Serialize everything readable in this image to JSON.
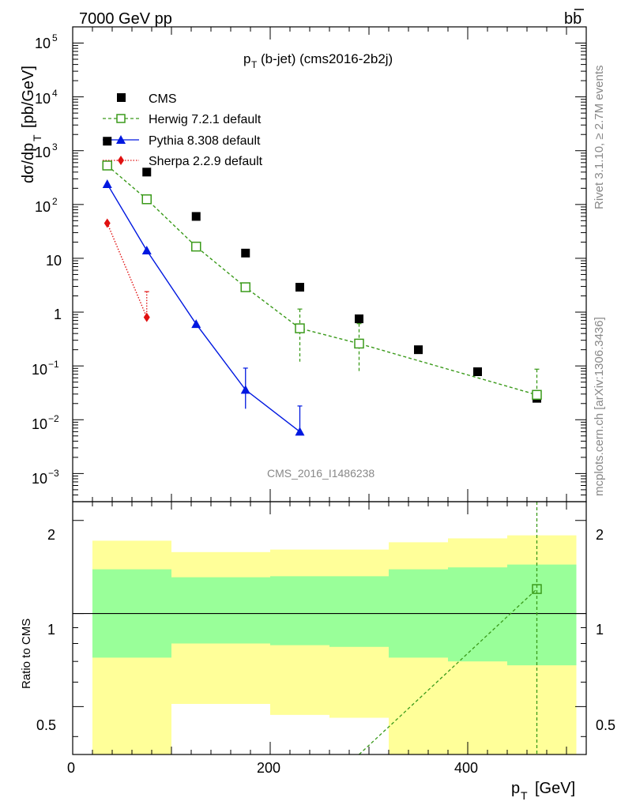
{
  "header": {
    "energy_label": "7000 GeV pp",
    "process_label": "bb",
    "plot_title_main": "p",
    "plot_title_sub": "T",
    "plot_title_rest": "(b-jet) (cms2016-2b2j)",
    "analysis_id": "CMS_2016_I1486238",
    "side_rivet": "Rivet 3.1.10, ≥ 2.7M events",
    "side_mcplots": "mcplots.cern.ch [arXiv:1306.3436]"
  },
  "axes": {
    "top_ylabel": "dσ/dp",
    "top_ylabel_sub": "T",
    "top_ylabel_unit": "[pb/GeV]",
    "ratio_ylabel": "Ratio to CMS",
    "xlabel_main": "p",
    "xlabel_sub": "T",
    "xlabel_unit": "[GeV]",
    "x_ticks": [
      "0",
      "200",
      "400"
    ],
    "ratio_ticks": [
      "0.5",
      "1",
      "2"
    ],
    "top_ticks": {
      "base10": "10",
      "e5": "5",
      "e4": "4",
      "e3": "3",
      "e2": "2",
      "ten": "10",
      "one": "1",
      "em1": "−1",
      "em2": "−2",
      "em3": "−3"
    }
  },
  "legend": {
    "cms": "CMS",
    "herwig": "Herwig 7.2.1 default",
    "pythia": "Pythia 8.308 default",
    "sherpa": "Sherpa 2.2.9 default"
  },
  "colors": {
    "cms": "#000000",
    "herwig": "#3a9a1a",
    "pythia": "#0018e0",
    "sherpa": "#e01010",
    "band_outer": "#ffff99",
    "band_inner": "#99ff99"
  },
  "chart_data": {
    "type": "scatter",
    "x_axis": {
      "label": "pT [GeV]",
      "range": [
        0,
        520
      ],
      "scale": "linear"
    },
    "y_axis_top": {
      "label": "dσ/dpT [pb/GeV]",
      "range": [
        0.0003,
        200000
      ],
      "scale": "log"
    },
    "y_axis_ratio": {
      "label": "Ratio to CMS",
      "range": [
        0.35,
        2.3
      ],
      "scale": "log"
    },
    "legend_position": "top-left",
    "series": [
      {
        "name": "CMS",
        "marker": "square",
        "x": [
          35,
          75,
          125,
          175,
          230,
          290,
          350,
          410,
          470
        ],
        "y": [
          1500,
          400,
          60,
          12.5,
          2.9,
          0.75,
          0.2,
          0.078,
          0.025
        ]
      },
      {
        "name": "Herwig 7.2.1 default",
        "marker": "open-square",
        "line": "dashed",
        "x": [
          35,
          75,
          125,
          175,
          230,
          290,
          470
        ],
        "y": [
          530,
          125,
          16.5,
          2.9,
          0.5,
          0.26,
          0.029
        ],
        "y_err_low": [
          0,
          0,
          0,
          0,
          0.38,
          0.18,
          1e-05
        ],
        "y_err_high": [
          0,
          0,
          0,
          0,
          0.64,
          0.35,
          0.058
        ]
      },
      {
        "name": "Pythia 8.308 default",
        "marker": "triangle",
        "line": "solid",
        "x": [
          35,
          75,
          125,
          175,
          230
        ],
        "y": [
          240,
          14,
          0.6,
          0.036,
          0.006
        ],
        "y_err_low": [
          0,
          0,
          0,
          0.02,
          1e-05
        ],
        "y_err_high": [
          0,
          0,
          0,
          0.055,
          0.012
        ]
      },
      {
        "name": "Sherpa 2.2.9 default",
        "marker": "diamond",
        "line": "dotted",
        "x": [
          35,
          75
        ],
        "y": [
          45,
          0.8
        ],
        "y_err_low": [
          0,
          1e-05
        ],
        "y_err_high": [
          0,
          1.6
        ]
      }
    ],
    "ratio_band_bins": [
      {
        "x_low": 20,
        "x_high": 100,
        "inner_low": 0.72,
        "inner_high": 1.39,
        "outer_low": 0.35,
        "outer_high": 1.72
      },
      {
        "x_low": 100,
        "x_high": 200,
        "inner_low": 0.8,
        "inner_high": 1.31,
        "outer_low": 0.51,
        "outer_high": 1.58
      },
      {
        "x_low": 200,
        "x_high": 260,
        "inner_low": 0.79,
        "inner_high": 1.32,
        "outer_low": 0.47,
        "outer_high": 1.61
      },
      {
        "x_low": 260,
        "x_high": 320,
        "inner_low": 0.78,
        "inner_high": 1.32,
        "outer_low": 0.46,
        "outer_high": 1.61
      },
      {
        "x_low": 320,
        "x_high": 380,
        "inner_low": 0.72,
        "inner_high": 1.39,
        "outer_low": 0.35,
        "outer_high": 1.7
      },
      {
        "x_low": 380,
        "x_high": 440,
        "inner_low": 0.7,
        "inner_high": 1.41,
        "outer_low": 0.35,
        "outer_high": 1.75
      },
      {
        "x_low": 440,
        "x_high": 510,
        "inner_low": 0.68,
        "inner_high": 1.44,
        "outer_low": 0.35,
        "outer_high": 1.79
      }
    ],
    "ratio_series": [
      {
        "name": "Herwig 7.2.1 default",
        "x": [
          290,
          470
        ],
        "y": [
          0.35,
          1.2
        ],
        "y_err_low": [
          0,
          0.85
        ],
        "y_err_high": [
          0,
          1.1
        ]
      }
    ]
  }
}
